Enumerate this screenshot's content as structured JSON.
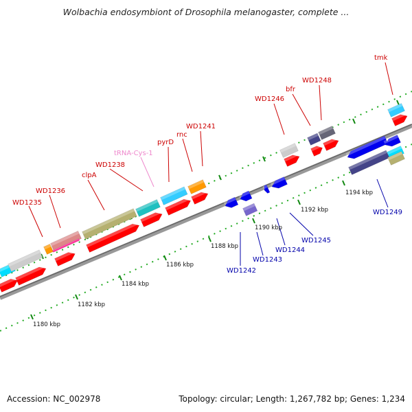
{
  "title": "Wolbachia endosymbiont of Drosophila melanogaster, complete ...",
  "accession": "Accession: NC_002978",
  "summary": "Topology: circular; Length: 1,267,782 bp; Genes: 1,234",
  "colors": {
    "forward_label": "#cc0000",
    "reverse_label": "#0000aa",
    "trna_label": "#ee88cc",
    "tick": "#118811",
    "forward_gene": "#ff0000",
    "reverse_gene": "#0000ee"
  },
  "tick_labels": [
    "1180 kbp",
    "1182 kbp",
    "1184 kbp",
    "1186 kbp",
    "1188 kbp",
    "1190 kbp",
    "1192 kbp",
    "1194 kbp"
  ],
  "forward_labels": [
    "WD1235",
    "WD1236",
    "clpA",
    "WD1238",
    "tRNA-Cys-1",
    "pyrD",
    "rnc",
    "WD1241",
    "WD1246",
    "bfr",
    "WD1248",
    "tmk"
  ],
  "reverse_labels": [
    "WD1242",
    "WD1243",
    "WD1244",
    "WD1245",
    "WD1249"
  ]
}
